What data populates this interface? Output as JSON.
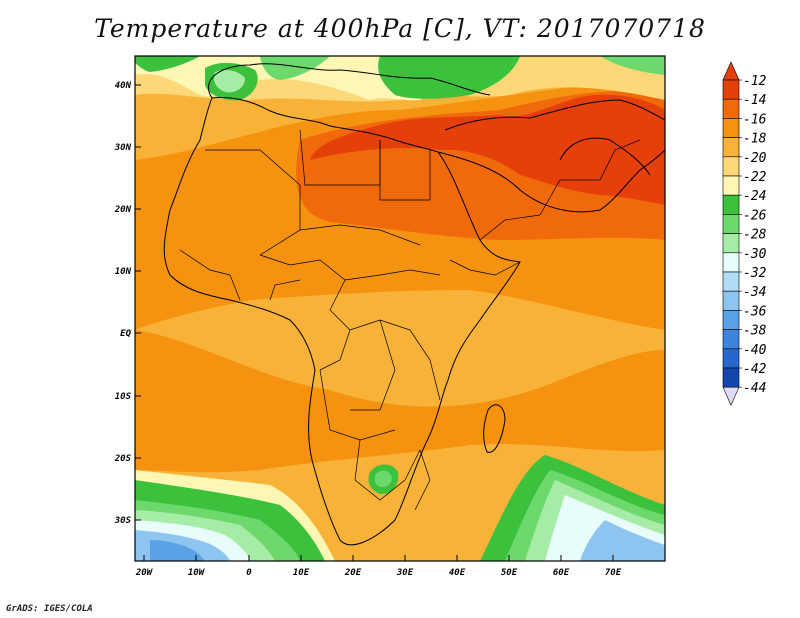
{
  "title": "Temperature at 400hPa [C], VT: 2017070718",
  "credit": "GrADS: IGES/COLA",
  "map": {
    "lat_labels": [
      "40N",
      "30N",
      "20N",
      "10N",
      "EQ",
      "10S",
      "20S",
      "30S"
    ],
    "lon_labels": [
      "20W",
      "10W",
      "0",
      "10E",
      "20E",
      "30E",
      "40E",
      "50E",
      "60E",
      "70E"
    ]
  },
  "colorbar": {
    "labels": [
      "-12",
      "-14",
      "-16",
      "-18",
      "-20",
      "-22",
      "-24",
      "-26",
      "-28",
      "-30",
      "-32",
      "-34",
      "-36",
      "-38",
      "-40",
      "-42",
      "-44"
    ],
    "colors": [
      "#e5400a",
      "#f06a0c",
      "#f5920f",
      "#f8b237",
      "#fcd878",
      "#fdf6b4",
      "#3cc13c",
      "#6dd96d",
      "#a6eca6",
      "#e9fcfc",
      "#b1dcf5",
      "#8dc5f0",
      "#5aa2e6",
      "#3d85dc",
      "#2767cc",
      "#1447ae",
      "#0b1f78"
    ]
  }
}
